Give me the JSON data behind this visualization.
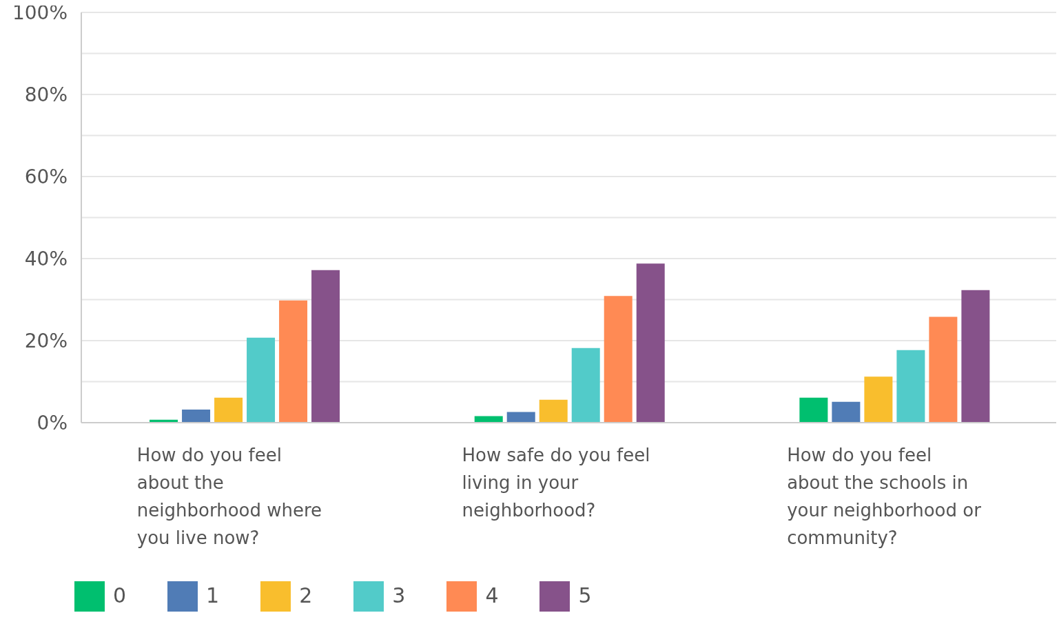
{
  "chart_data": {
    "type": "bar",
    "categories": [
      "How do you feel about the neighborhood where you live now?",
      "How safe do you feel living in your neighborhood?",
      "How do you feel about the schools in your neighborhood or community?"
    ],
    "series": [
      {
        "name": "0",
        "color": "#00bf6f",
        "values": [
          0.7,
          1.6,
          6.1
        ]
      },
      {
        "name": "1",
        "color": "#507cb6",
        "values": [
          3.2,
          2.6,
          5.1
        ]
      },
      {
        "name": "2",
        "color": "#f9be2d",
        "values": [
          6.1,
          5.6,
          11.2
        ]
      },
      {
        "name": "3",
        "color": "#52cbc9",
        "values": [
          20.7,
          18.2,
          17.7
        ]
      },
      {
        "name": "4",
        "color": "#ff8a54",
        "values": [
          29.8,
          30.9,
          25.8
        ]
      },
      {
        "name": "5",
        "color": "#86528a",
        "values": [
          37.2,
          38.8,
          32.3
        ]
      }
    ],
    "ylim": [
      0,
      100
    ],
    "yticks": [
      {
        "value": 0,
        "label": "0%"
      },
      {
        "value": 10,
        "label": null
      },
      {
        "value": 20,
        "label": "20%"
      },
      {
        "value": 30,
        "label": null
      },
      {
        "value": 40,
        "label": "40%"
      },
      {
        "value": 50,
        "label": null
      },
      {
        "value": 60,
        "label": "60%"
      },
      {
        "value": 70,
        "label": null
      },
      {
        "value": 80,
        "label": "80%"
      },
      {
        "value": 90,
        "label": null
      },
      {
        "value": 100,
        "label": "100%"
      }
    ],
    "grid": "y",
    "legend": "bottom left"
  }
}
